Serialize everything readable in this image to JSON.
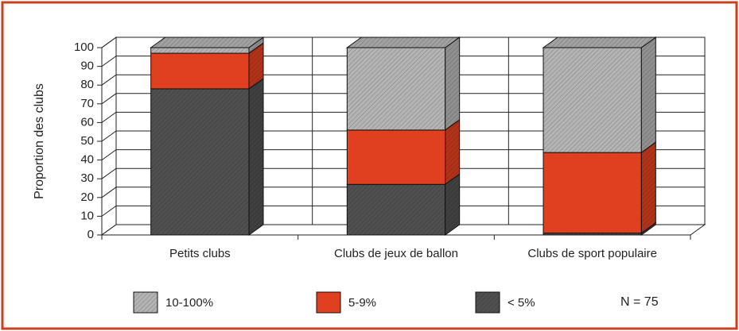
{
  "chart_data": {
    "type": "bar3d_stacked",
    "ylabel": "Proportion des clubs",
    "categories": [
      "Petits clubs",
      "Clubs de jeux de ballon",
      "Clubs de sport populaire"
    ],
    "series": [
      {
        "name": "10-100%",
        "color": "#b4b4b4",
        "values": [
          3,
          44,
          56
        ]
      },
      {
        "name": "5-9%",
        "color": "#e0401f",
        "values": [
          19,
          29,
          43
        ]
      },
      {
        "name": "< 5%",
        "color": "#505050",
        "values": [
          78,
          27,
          1
        ]
      }
    ],
    "ylim": [
      0,
      100
    ],
    "yticks": [
      0,
      10,
      20,
      30,
      40,
      50,
      60,
      70,
      80,
      90,
      100
    ],
    "grid": true,
    "stacked": true,
    "annotation": "N = 75"
  }
}
